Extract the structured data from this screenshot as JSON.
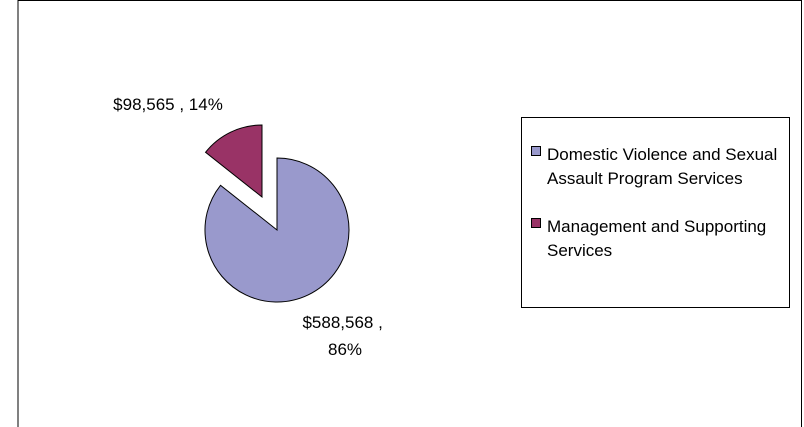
{
  "chart_data": {
    "type": "pie",
    "categories": [
      "Domestic Violence and Sexual Assault Program Services",
      "Management and Supporting Services"
    ],
    "values": [
      588568,
      98565
    ],
    "value_labels": [
      "$588,568 , 86%",
      "$98,565 , 14%"
    ],
    "colors": [
      "#9999cc",
      "#993366"
    ],
    "legend": "right"
  }
}
